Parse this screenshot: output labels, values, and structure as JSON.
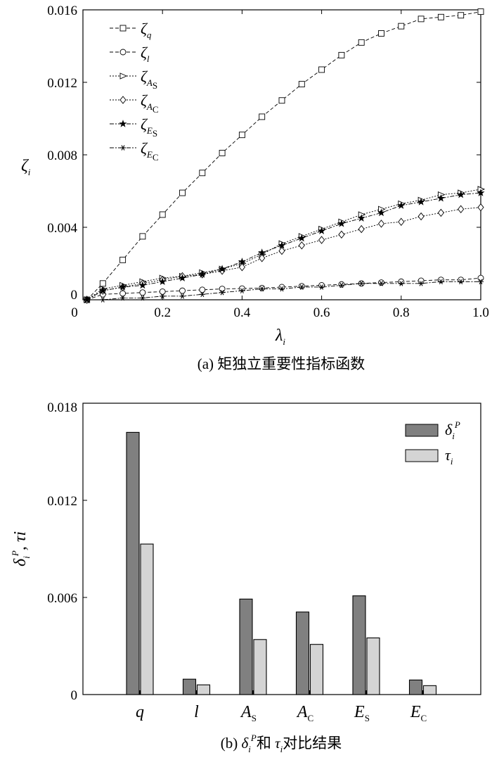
{
  "chart_data": [
    {
      "type": "line",
      "xlabel": "λi",
      "ylabel": "ζi",
      "title": "(a) 矩独立重要性指标函数",
      "xlim": [
        0,
        1.0
      ],
      "ylim": [
        0,
        0.016
      ],
      "xticks": [
        "0",
        "0.2",
        "0.4",
        "0.6",
        "0.8",
        "1.0"
      ],
      "yticks": [
        "0",
        "0.004",
        "0.008",
        "0.012",
        "0.016"
      ],
      "legend_position": "top-left",
      "x": [
        0.01,
        0.05,
        0.1,
        0.15,
        0.2,
        0.25,
        0.3,
        0.35,
        0.4,
        0.45,
        0.5,
        0.55,
        0.6,
        0.65,
        0.7,
        0.75,
        0.8,
        0.85,
        0.9,
        0.95,
        1.0
      ],
      "series": [
        {
          "name": "ζq",
          "marker": "square",
          "dash": "5,3",
          "values": [
            0.0,
            0.0009,
            0.0022,
            0.0035,
            0.0047,
            0.0059,
            0.007,
            0.0081,
            0.0091,
            0.0101,
            0.011,
            0.0119,
            0.0127,
            0.0135,
            0.0142,
            0.0147,
            0.0151,
            0.0155,
            0.0156,
            0.0157,
            0.0159
          ]
        },
        {
          "name": "ζl",
          "marker": "circle",
          "dash": "5,3",
          "values": [
            0.0,
            0.0003,
            0.00035,
            0.0004,
            0.00045,
            0.0005,
            0.00055,
            0.0006,
            0.00062,
            0.00065,
            0.0007,
            0.00075,
            0.0008,
            0.00085,
            0.0009,
            0.00095,
            0.001,
            0.00105,
            0.0011,
            0.0011,
            0.0012
          ]
        },
        {
          "name": "ζAS",
          "marker": "triangle-right",
          "dash": "2,2",
          "values": [
            0.0,
            0.0006,
            0.0008,
            0.001,
            0.0012,
            0.0013,
            0.0015,
            0.0017,
            0.002,
            0.0025,
            0.0031,
            0.0035,
            0.0039,
            0.0043,
            0.0047,
            0.005,
            0.0053,
            0.0055,
            0.0058,
            0.0059,
            0.0061
          ]
        },
        {
          "name": "ζAC",
          "marker": "diamond",
          "dash": "2,2",
          "values": [
            0.0,
            0.0005,
            0.0007,
            0.0009,
            0.0011,
            0.0013,
            0.0014,
            0.0016,
            0.0018,
            0.0023,
            0.0027,
            0.003,
            0.0033,
            0.0036,
            0.0039,
            0.0042,
            0.0043,
            0.0046,
            0.0048,
            0.005,
            0.0051
          ]
        },
        {
          "name": "ζES",
          "marker": "star",
          "dash": "6,2,2,2",
          "values": [
            0.0,
            0.0005,
            0.0007,
            0.0008,
            0.001,
            0.0012,
            0.0014,
            0.0017,
            0.0021,
            0.0026,
            0.003,
            0.0034,
            0.0038,
            0.0042,
            0.0045,
            0.0048,
            0.0052,
            0.0054,
            0.0056,
            0.0058,
            0.0059
          ]
        },
        {
          "name": "ζEC",
          "marker": "asterisk",
          "dash": "6,2,2,2",
          "values": [
            0.0,
            0.0,
            0.0001,
            0.0001,
            0.0002,
            0.0002,
            0.0003,
            0.0004,
            0.0005,
            0.0006,
            0.0006,
            0.0007,
            0.0007,
            0.0008,
            0.0009,
            0.0009,
            0.0009,
            0.0009,
            0.001,
            0.001,
            0.001
          ]
        }
      ]
    },
    {
      "type": "bar",
      "xlabel": "",
      "ylabel": "δiP, τi",
      "title": "(b) δiP和 τi对比结果",
      "ylim": [
        0,
        0.018
      ],
      "yticks": [
        "0",
        "0.006",
        "0.012",
        "0.018"
      ],
      "legend_position": "top-right",
      "categories": [
        "q",
        "l",
        "AS",
        "AC",
        "ES",
        "EC"
      ],
      "series": [
        {
          "name": "δiP",
          "color": "#808080",
          "values": [
            0.0162,
            0.00095,
            0.0059,
            0.0051,
            0.0061,
            0.0009
          ]
        },
        {
          "name": "τi",
          "color": "#d4d4d4",
          "values": [
            0.0093,
            0.0006,
            0.0034,
            0.0031,
            0.0035,
            0.00055
          ]
        }
      ]
    }
  ]
}
